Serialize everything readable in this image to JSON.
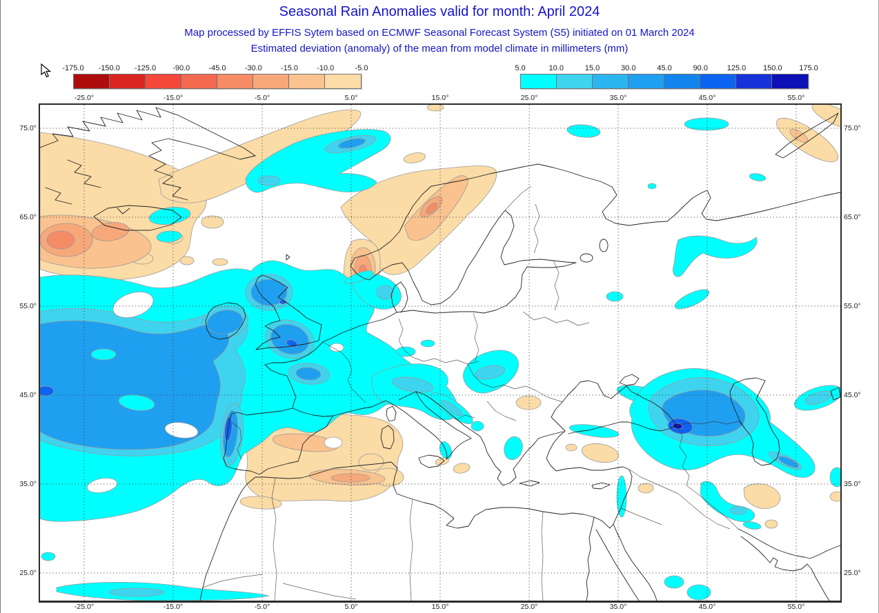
{
  "header": {
    "title": "Seasonal Rain Anomalies valid for month: April 2024",
    "subtitle1": "Map processed by EFFIS Sytem based on ECMWF Seasonal Forecast System (S5) initiated on 01 March 2024",
    "subtitle2": "Estimated deviation (anomaly) of the mean from model climate in millimeters (mm)",
    "text_color": "#1414cc"
  },
  "legend": {
    "negative": {
      "ticks": [
        "-175.0",
        "-150.0",
        "-125.0",
        "-90.0",
        "-45.0",
        "-30.0",
        "-15.0",
        "-10.0",
        "-5.0"
      ],
      "colors": [
        "#ae0d0d",
        "#d92620",
        "#f4483a",
        "#f36a50",
        "#f58c66",
        "#f7a87a",
        "#f9c28e",
        "#fbdca6"
      ]
    },
    "positive": {
      "ticks": [
        "5.0",
        "10.0",
        "15.0",
        "30.0",
        "45.0",
        "90.0",
        "125.0",
        "150.0",
        "175.0"
      ],
      "colors": [
        "#00ffff",
        "#3ed4f0",
        "#2bb5ee",
        "#1f9ff0",
        "#1284ee",
        "#0d64f0",
        "#1633d9",
        "#0d10b4"
      ]
    }
  },
  "map": {
    "lon_labels": [
      "-25.0°",
      "-15.0°",
      "-5.0°",
      "5.0°",
      "15.0°",
      "25.0°",
      "35.0°",
      "45.0°",
      "55.0°"
    ],
    "lat_labels": [
      "75.0°",
      "65.0°",
      "55.0°",
      "45.0°",
      "35.0°",
      "25.0°"
    ],
    "anomaly_palette": {
      "n1": "#fbdca6",
      "n2": "#f9c28e",
      "n3": "#f7a87a",
      "n4": "#f58c66",
      "p1": "#00ffff",
      "p2": "#3ed4f0",
      "p3": "#1f9ff0",
      "p4": "#0d64f0",
      "p5": "#0d10b4",
      "white": "#ffffff"
    },
    "grid_color": "#3c3c3c",
    "coast_color": "#222222",
    "frame_color": "#2b2b2b"
  }
}
